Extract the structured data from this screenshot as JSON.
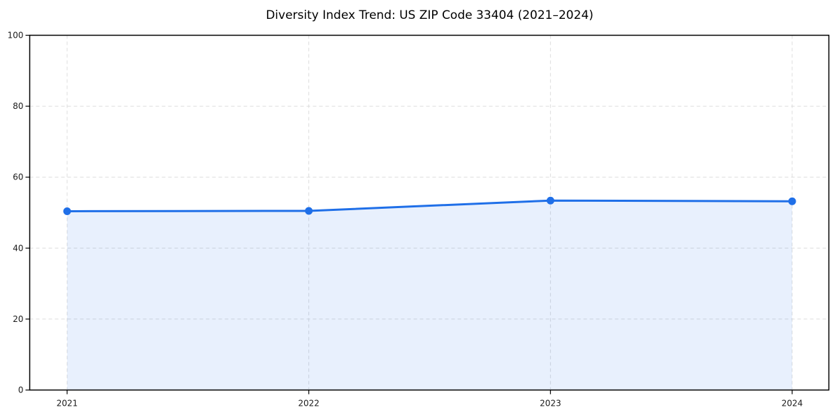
{
  "chart_data": {
    "type": "area",
    "title": "Diversity Index Trend: US ZIP Code 33404 (2021–2024)",
    "x": [
      2021,
      2022,
      2023,
      2024
    ],
    "series": [
      {
        "values": [
          50.4,
          50.5,
          53.4,
          53.2
        ]
      }
    ],
    "xlabel": "",
    "ylabel": "",
    "ylim": [
      0,
      100
    ],
    "yticks": [
      0,
      20,
      40,
      60,
      80,
      100
    ],
    "grid": true,
    "grid_style": "dashed",
    "legend": false,
    "colors": {
      "line": "#1f6fe8",
      "fill": "rgba(31,111,232,0.10)",
      "grid": "#dcdcdc",
      "axis": "#000000",
      "tick_text": "#1a1a1a",
      "background": "#ffffff"
    }
  }
}
